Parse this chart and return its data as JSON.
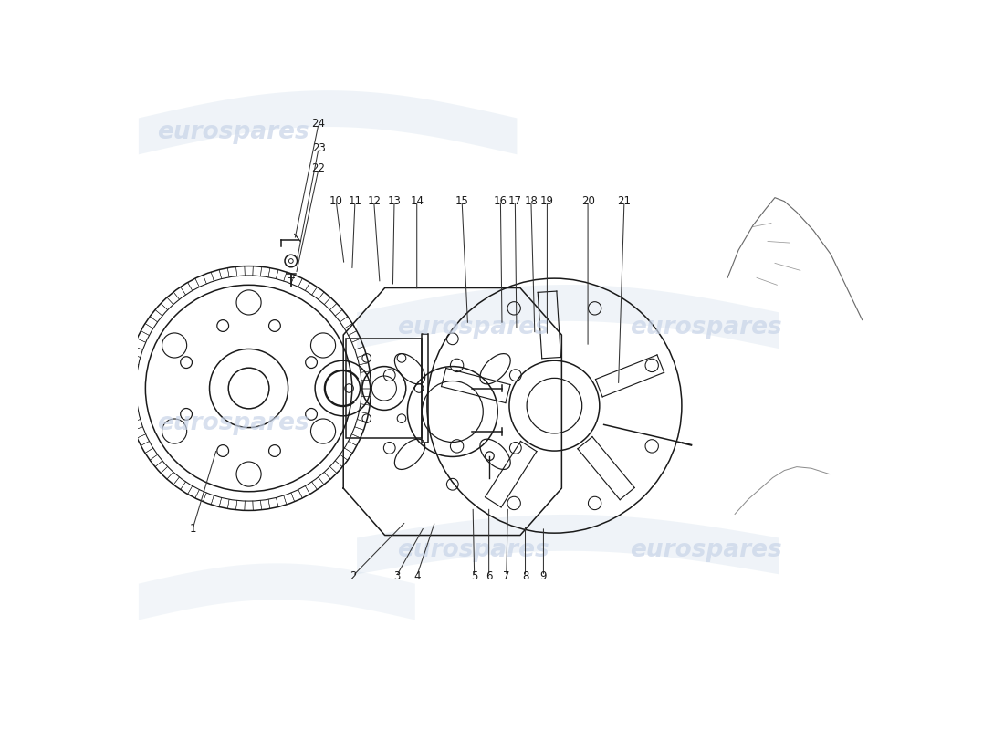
{
  "background_color": "#ffffff",
  "watermark_text": "eurospares",
  "watermark_color": "#c8d4e8",
  "line_color": "#1a1a1a",
  "label_color": "#1a1a1a",
  "leader_line_color": "#333333",
  "fig_width": 11.0,
  "fig_height": 8.0,
  "parts_info": {
    "1": [
      0.075,
      0.275,
      0.108,
      0.385
    ],
    "2": [
      0.295,
      0.21,
      0.368,
      0.285
    ],
    "3": [
      0.355,
      0.21,
      0.393,
      0.278
    ],
    "4": [
      0.383,
      0.21,
      0.408,
      0.285
    ],
    "5": [
      0.462,
      0.21,
      0.46,
      0.305
    ],
    "6": [
      0.482,
      0.21,
      0.482,
      0.305
    ],
    "7": [
      0.506,
      0.21,
      0.508,
      0.305
    ],
    "8": [
      0.532,
      0.21,
      0.532,
      0.28
    ],
    "9": [
      0.557,
      0.21,
      0.557,
      0.278
    ],
    "10": [
      0.272,
      0.725,
      0.283,
      0.638
    ],
    "11": [
      0.298,
      0.725,
      0.294,
      0.63
    ],
    "12": [
      0.324,
      0.725,
      0.332,
      0.612
    ],
    "13": [
      0.352,
      0.725,
      0.35,
      0.608
    ],
    "14": [
      0.383,
      0.725,
      0.383,
      0.602
    ],
    "15": [
      0.445,
      0.725,
      0.453,
      0.555
    ],
    "16": [
      0.498,
      0.725,
      0.5,
      0.555
    ],
    "17": [
      0.518,
      0.725,
      0.52,
      0.548
    ],
    "18": [
      0.54,
      0.725,
      0.545,
      0.542
    ],
    "19": [
      0.562,
      0.725,
      0.562,
      0.54
    ],
    "20": [
      0.618,
      0.725,
      0.618,
      0.525
    ],
    "21": [
      0.668,
      0.725,
      0.66,
      0.472
    ],
    "22": [
      0.248,
      0.77,
      0.217,
      0.625
    ],
    "23": [
      0.248,
      0.798,
      0.218,
      0.643
    ],
    "24": [
      0.248,
      0.832,
      0.215,
      0.672
    ]
  }
}
